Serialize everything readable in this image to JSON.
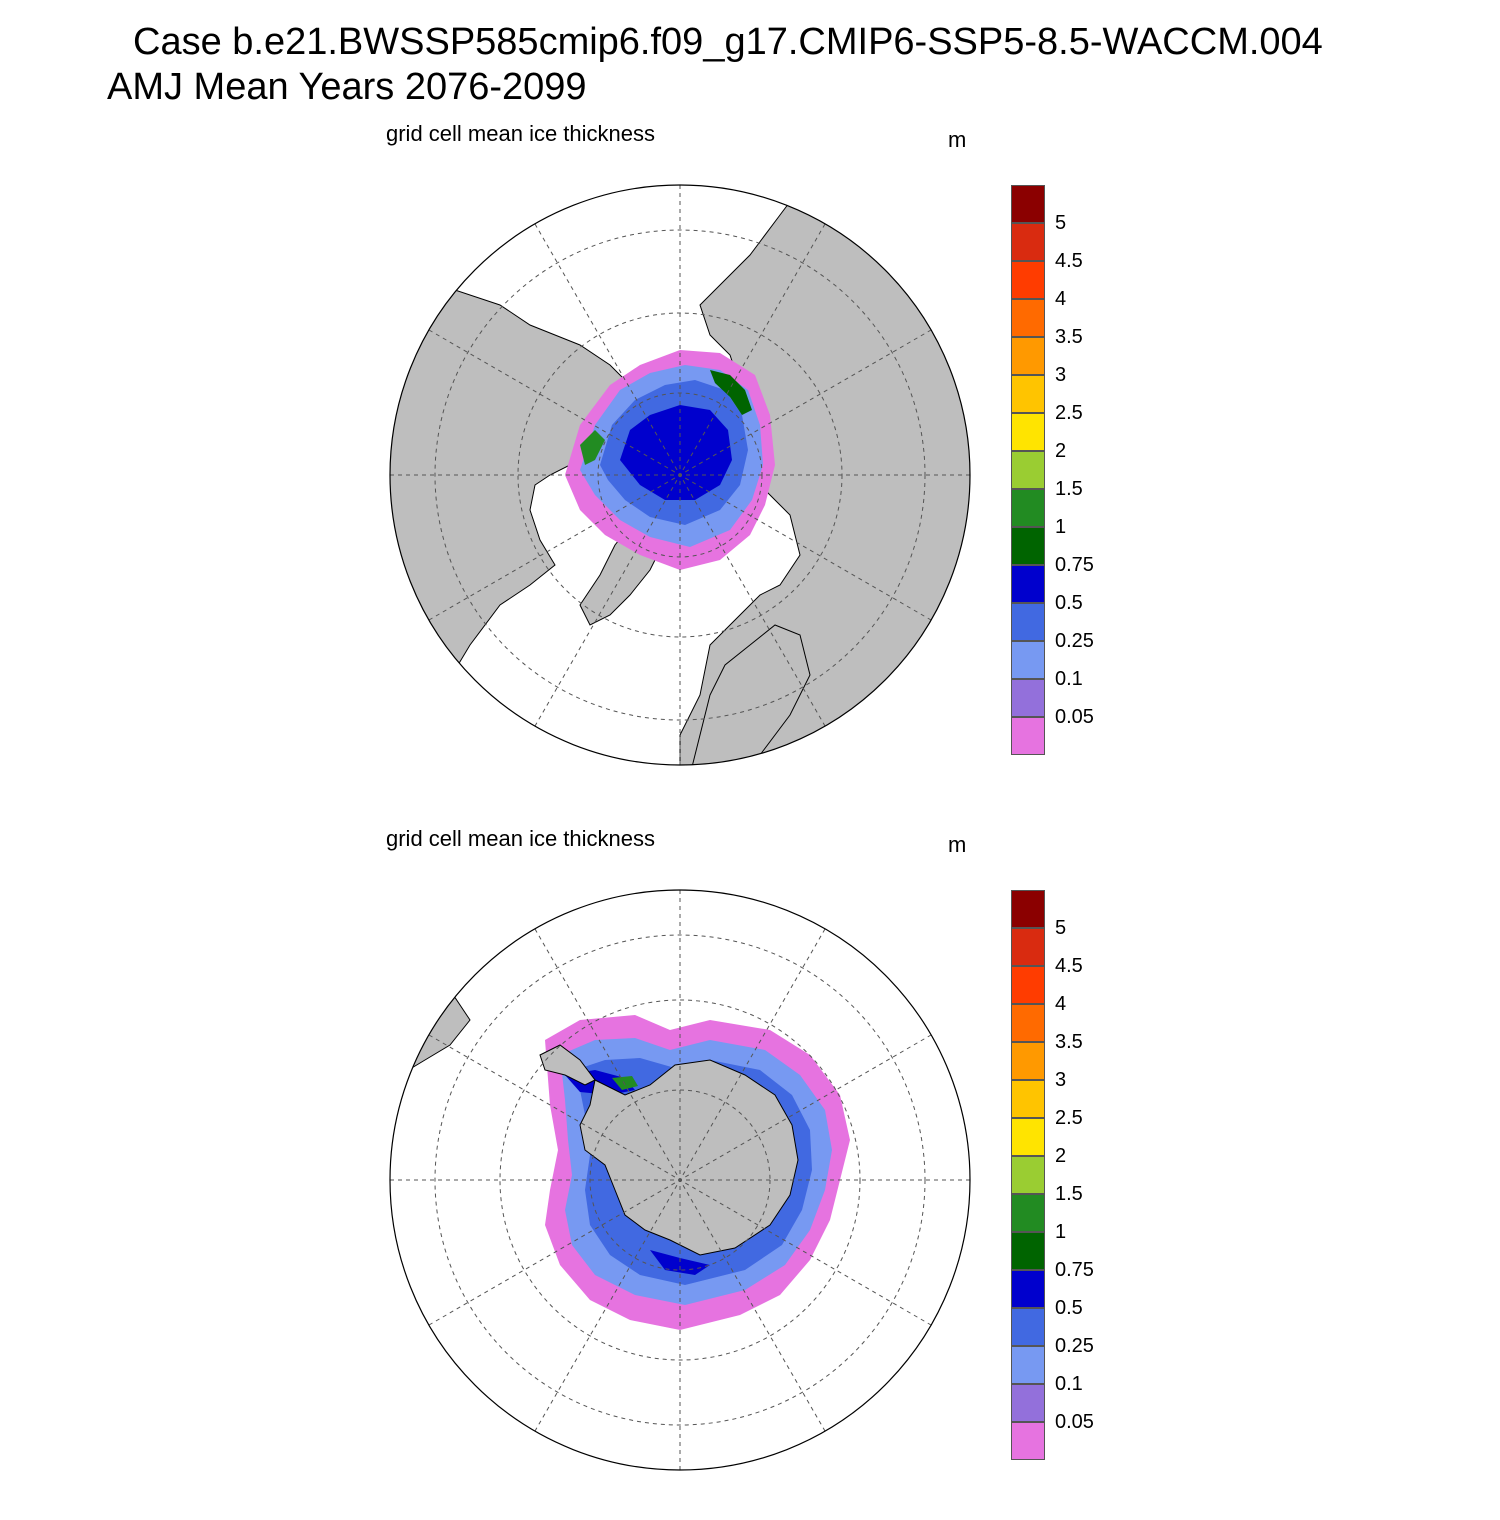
{
  "header": {
    "title_line1": "Case b.e21.BWSSP585cmip6.f09_g17.CMIP6-SSP5-8.5-WACCM.004",
    "title_line2": "AMJ Mean   Years 2076-2099"
  },
  "panels": [
    {
      "id": "north",
      "variable_label": "grid cell mean ice thickness",
      "units": "m",
      "hemisphere": "Northern"
    },
    {
      "id": "south",
      "variable_label": "grid cell mean ice thickness",
      "units": "m",
      "hemisphere": "Southern"
    }
  ],
  "colorbar": {
    "levels": [
      "0.05",
      "0.1",
      "0.25",
      "0.5",
      "0.75",
      "1",
      "1.5",
      "2",
      "2.5",
      "3",
      "3.5",
      "4",
      "4.5",
      "5"
    ],
    "colors": [
      "#e673e0",
      "#9370db",
      "#7799f2",
      "#4169e1",
      "#0000cd",
      "#006400",
      "#228b22",
      "#9acd32",
      "#ffe400",
      "#ffc400",
      "#ff9900",
      "#ff6a00",
      "#ff3c00",
      "#d92b10",
      "#8b0000"
    ]
  },
  "map_style": {
    "land_color": "#bebebe",
    "ocean_color": "#ffffff",
    "grid_color": "#555555"
  }
}
